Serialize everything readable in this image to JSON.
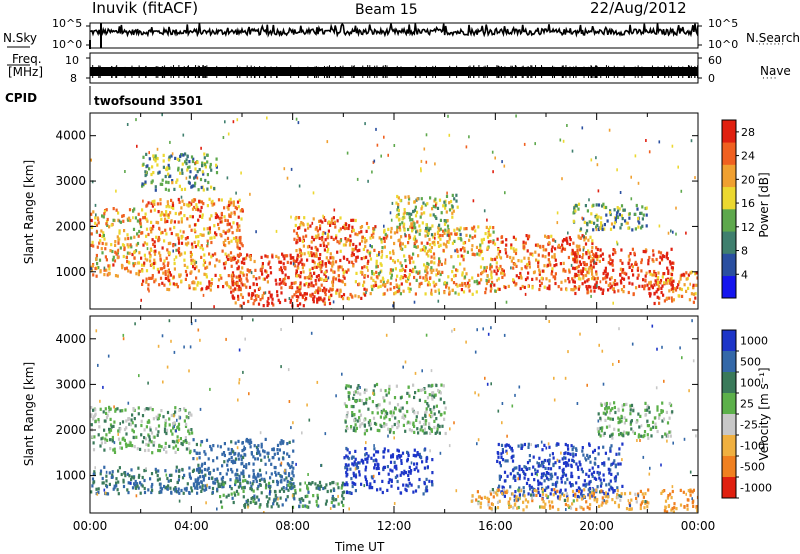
{
  "header": {
    "station": "Inuvik (fitACF)",
    "beam": "Beam 15",
    "date": "22/Aug/2012"
  },
  "panels": {
    "nsky": {
      "left_label": "N.Sky",
      "right_label": "N.Search",
      "ticks_left": [
        "10^5",
        "10^0"
      ],
      "ticks_right": [
        "10^5",
        "10^0"
      ]
    },
    "freq": {
      "left_label_1": "Freq.",
      "left_label_2": "[MHz]",
      "right_label": "Nave",
      "ticks_left": [
        "10",
        "8"
      ],
      "ticks_right": [
        "60",
        "0"
      ]
    },
    "cpid": {
      "label": "CPID",
      "value": "twofsound 3501"
    }
  },
  "chart_data": [
    {
      "type": "heatmap",
      "title": "",
      "xlabel": "Time UT",
      "ylabel": "Slant Range [km]",
      "xlim": [
        "00:00",
        "24:00"
      ],
      "ylim": [
        180,
        4500
      ],
      "xticks": [
        "00:00",
        "04:00",
        "08:00",
        "12:00",
        "16:00",
        "20:00",
        "00:00"
      ],
      "yticks": [
        1000,
        2000,
        3000,
        4000
      ],
      "colorbar": {
        "label": "Power [dB]",
        "ticks": [
          4,
          8,
          12,
          16,
          20,
          24,
          28
        ],
        "range": [
          0,
          30
        ],
        "colors": [
          "#1515ee",
          "#2a4fa0",
          "#3f7f6e",
          "#5ea84c",
          "#ecd830",
          "#f0a030",
          "#f06020",
          "#e02010"
        ]
      },
      "echo_regions": [
        {
          "t": [
            0.0,
            2.0
          ],
          "r": [
            900,
            2400
          ],
          "value": 20
        },
        {
          "t": [
            2.0,
            6.0
          ],
          "r": [
            600,
            2600
          ],
          "value": 22
        },
        {
          "t": [
            5.5,
            9.5
          ],
          "r": [
            250,
            1400
          ],
          "value": 28
        },
        {
          "t": [
            8.0,
            11.0
          ],
          "r": [
            400,
            2200
          ],
          "value": 24
        },
        {
          "t": [
            11.0,
            16.0
          ],
          "r": [
            500,
            2000
          ],
          "value": 20
        },
        {
          "t": [
            12.0,
            14.5
          ],
          "r": [
            1800,
            2700
          ],
          "value": 16
        },
        {
          "t": [
            16.0,
            20.0
          ],
          "r": [
            600,
            1800
          ],
          "value": 24
        },
        {
          "t": [
            19.0,
            23.0
          ],
          "r": [
            500,
            1500
          ],
          "value": 28
        },
        {
          "t": [
            22.0,
            24.0
          ],
          "r": [
            300,
            1000
          ],
          "value": 24
        },
        {
          "t": [
            2.0,
            5.0
          ],
          "r": [
            2800,
            3600
          ],
          "value": 12
        },
        {
          "t": [
            19.0,
            22.0
          ],
          "r": [
            1900,
            2500
          ],
          "value": 12
        }
      ]
    },
    {
      "type": "heatmap",
      "title": "",
      "xlabel": "Time UT",
      "ylabel": "Slant Range [km]",
      "xlim": [
        "00:00",
        "24:00"
      ],
      "ylim": [
        180,
        4500
      ],
      "xticks": [
        "00:00",
        "04:00",
        "08:00",
        "12:00",
        "16:00",
        "20:00",
        "00:00"
      ],
      "yticks": [
        1000,
        2000,
        3000,
        4000
      ],
      "colorbar": {
        "label": "Velocity [m s⁻¹]",
        "ticks": [
          1000,
          500,
          100,
          25,
          -25,
          -100,
          -500,
          -1000
        ],
        "colors": [
          "#1d35c8",
          "#3468a8",
          "#3a7a5a",
          "#5cb04a",
          "#c8c8c8",
          "#f0b040",
          "#f08020",
          "#e02010"
        ]
      },
      "echo_regions": [
        {
          "t": [
            0.0,
            4.0
          ],
          "r": [
            1500,
            2500
          ],
          "value": 0
        },
        {
          "t": [
            0.0,
            5.0
          ],
          "r": [
            600,
            1200
          ],
          "value": 100
        },
        {
          "t": [
            4.0,
            8.0
          ],
          "r": [
            700,
            1800
          ],
          "value": 150
        },
        {
          "t": [
            5.0,
            10.0
          ],
          "r": [
            300,
            900
          ],
          "value": 60
        },
        {
          "t": [
            10.0,
            13.5
          ],
          "r": [
            600,
            1600
          ],
          "value": 700
        },
        {
          "t": [
            10.0,
            14.0
          ],
          "r": [
            1900,
            3000
          ],
          "value": 0
        },
        {
          "t": [
            16.0,
            21.0
          ],
          "r": [
            500,
            1700
          ],
          "value": 600
        },
        {
          "t": [
            15.0,
            22.0
          ],
          "r": [
            250,
            700
          ],
          "value": -300
        },
        {
          "t": [
            20.0,
            23.0
          ],
          "r": [
            1800,
            2600
          ],
          "value": 0
        },
        {
          "t": [
            22.5,
            24.0
          ],
          "r": [
            200,
            700
          ],
          "value": -500
        }
      ]
    }
  ]
}
